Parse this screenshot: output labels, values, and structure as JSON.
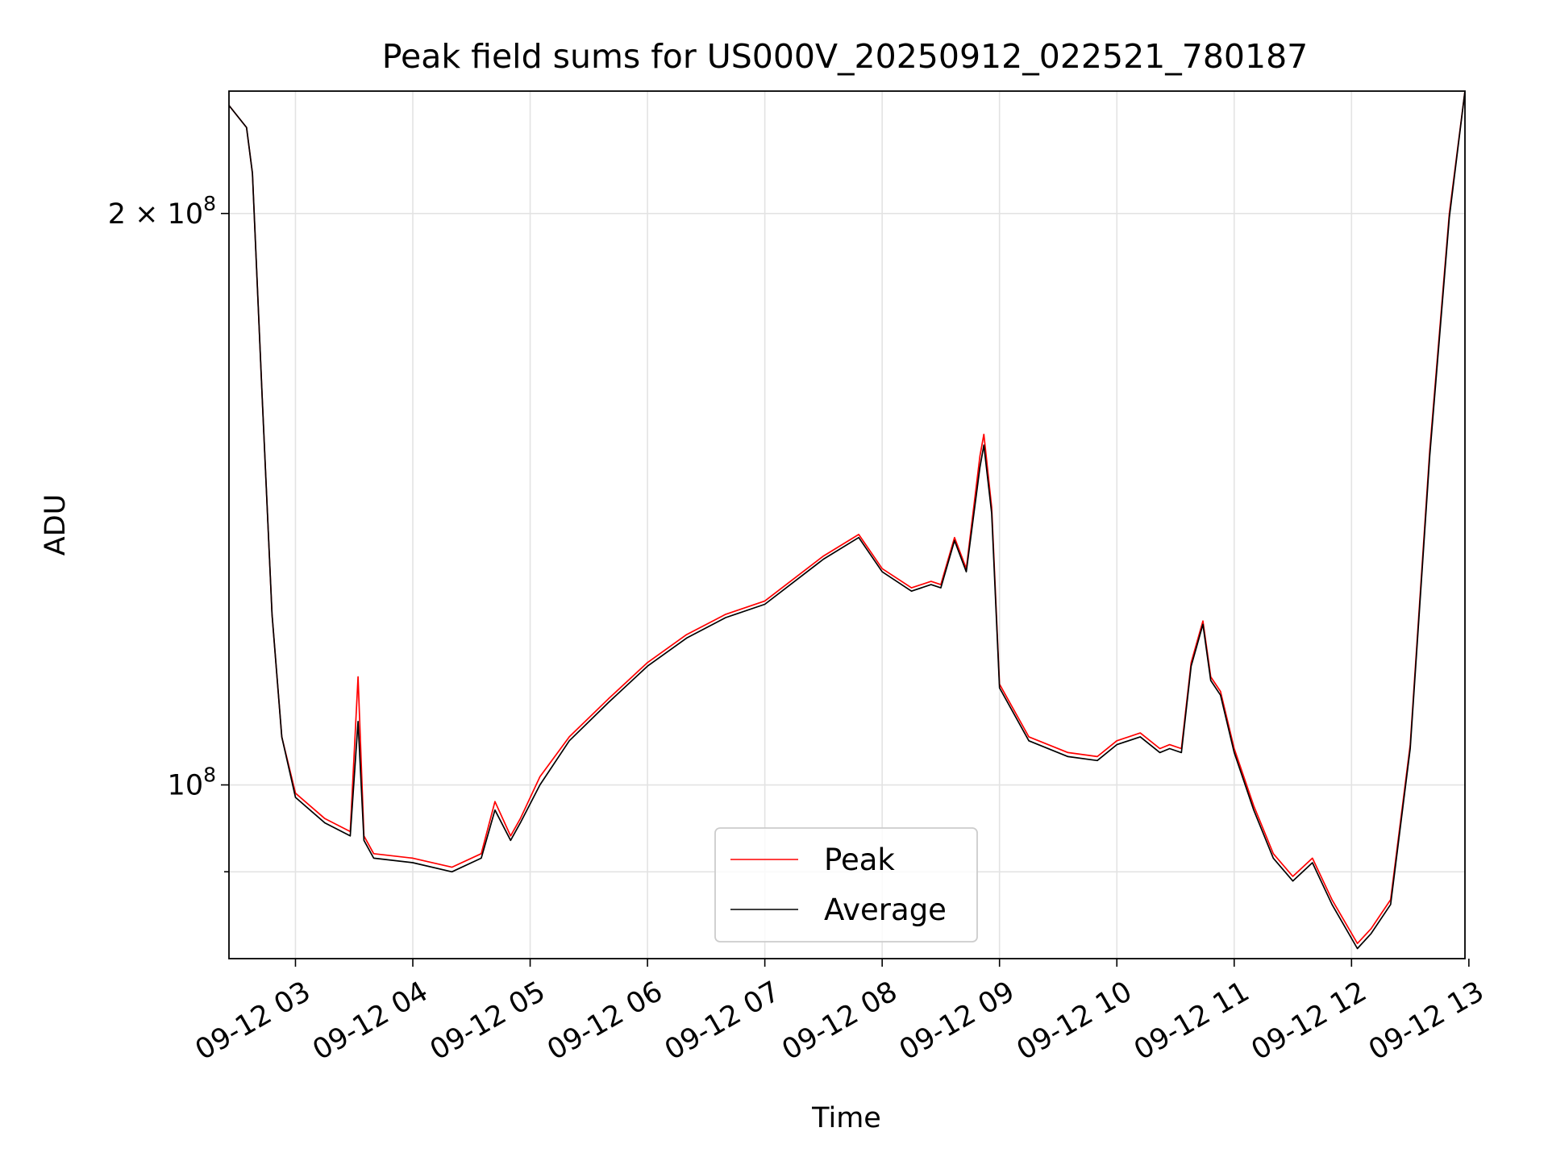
{
  "chart_data": {
    "type": "line",
    "title": "Peak field sums for US000V_20250912_022521_780187",
    "xlabel": "Time",
    "ylabel": "ADU",
    "x_scale": "time",
    "y_scale": "log",
    "xlim": [
      "2025-09-12 02:26",
      "2025-09-12 12:58"
    ],
    "ylim": [
      81000000,
      232000000
    ],
    "x_ticks": [
      "09-12 03",
      "09-12 04",
      "09-12 05",
      "09-12 06",
      "09-12 07",
      "09-12 08",
      "09-12 09",
      "09-12 10",
      "09-12 11",
      "09-12 12",
      "09-12 13"
    ],
    "y_ticks": [
      {
        "value": 200000000,
        "base": "2 × 10",
        "exp": "8"
      },
      {
        "value": 100000000,
        "base": "10",
        "exp": "8"
      }
    ],
    "grid": true,
    "legend_position": "lower center",
    "series": [
      {
        "name": "Peak",
        "color": "#ff0000",
        "x": [
          "2025-09-12 02:26",
          "2025-09-12 02:35",
          "2025-09-12 02:38",
          "2025-09-12 02:43",
          "2025-09-12 02:48",
          "2025-09-12 02:53",
          "2025-09-12 03:00",
          "2025-09-12 03:15",
          "2025-09-12 03:28",
          "2025-09-12 03:32",
          "2025-09-12 03:35",
          "2025-09-12 03:40",
          "2025-09-12 04:00",
          "2025-09-12 04:20",
          "2025-09-12 04:35",
          "2025-09-12 04:42",
          "2025-09-12 04:50",
          "2025-09-12 04:55",
          "2025-09-12 05:05",
          "2025-09-12 05:20",
          "2025-09-12 05:40",
          "2025-09-12 06:00",
          "2025-09-12 06:20",
          "2025-09-12 06:40",
          "2025-09-12 07:00",
          "2025-09-12 07:30",
          "2025-09-12 07:48",
          "2025-09-12 08:00",
          "2025-09-12 08:15",
          "2025-09-12 08:25",
          "2025-09-12 08:30",
          "2025-09-12 08:37",
          "2025-09-12 08:43",
          "2025-09-12 08:50",
          "2025-09-12 08:52",
          "2025-09-12 08:56",
          "2025-09-12 09:00",
          "2025-09-12 09:15",
          "2025-09-12 09:35",
          "2025-09-12 09:50",
          "2025-09-12 10:00",
          "2025-09-12 10:12",
          "2025-09-12 10:22",
          "2025-09-12 10:27",
          "2025-09-12 10:33",
          "2025-09-12 10:38",
          "2025-09-12 10:44",
          "2025-09-12 10:48",
          "2025-09-12 10:53",
          "2025-09-12 11:00",
          "2025-09-12 11:10",
          "2025-09-12 11:20",
          "2025-09-12 11:30",
          "2025-09-12 11:40",
          "2025-09-12 11:50",
          "2025-09-12 12:03",
          "2025-09-12 12:10",
          "2025-09-12 12:20",
          "2025-09-12 12:30",
          "2025-09-12 12:40",
          "2025-09-12 12:50",
          "2025-09-12 12:58"
        ],
        "y": [
          228000000,
          222000000,
          210000000,
          160000000,
          123000000,
          106000000,
          99000000,
          96000000,
          94500000,
          114000000,
          94000000,
          92000000,
          91500000,
          90500000,
          92000000,
          98000000,
          94000000,
          96000000,
          101000000,
          106000000,
          111000000,
          116000000,
          120000000,
          123000000,
          125000000,
          132000000,
          135500000,
          130000000,
          127000000,
          128000000,
          127500000,
          135000000,
          130000000,
          149000000,
          153000000,
          140000000,
          113000000,
          106000000,
          104000000,
          103500000,
          105500000,
          106500000,
          104500000,
          105000000,
          104500000,
          116000000,
          122000000,
          114000000,
          112000000,
          104500000,
          97500000,
          92000000,
          89500000,
          91500000,
          87000000,
          82500000,
          84000000,
          87000000,
          105000000,
          150000000,
          200000000,
          232000000
        ]
      },
      {
        "name": "Average",
        "color": "#000000",
        "x": [
          "2025-09-12 02:26",
          "2025-09-12 02:35",
          "2025-09-12 02:38",
          "2025-09-12 02:43",
          "2025-09-12 02:48",
          "2025-09-12 02:53",
          "2025-09-12 03:00",
          "2025-09-12 03:15",
          "2025-09-12 03:28",
          "2025-09-12 03:32",
          "2025-09-12 03:35",
          "2025-09-12 03:40",
          "2025-09-12 04:00",
          "2025-09-12 04:20",
          "2025-09-12 04:35",
          "2025-09-12 04:42",
          "2025-09-12 04:50",
          "2025-09-12 04:55",
          "2025-09-12 05:05",
          "2025-09-12 05:20",
          "2025-09-12 05:40",
          "2025-09-12 06:00",
          "2025-09-12 06:20",
          "2025-09-12 06:40",
          "2025-09-12 07:00",
          "2025-09-12 07:30",
          "2025-09-12 07:48",
          "2025-09-12 08:00",
          "2025-09-12 08:15",
          "2025-09-12 08:25",
          "2025-09-12 08:30",
          "2025-09-12 08:37",
          "2025-09-12 08:43",
          "2025-09-12 08:50",
          "2025-09-12 08:52",
          "2025-09-12 08:56",
          "2025-09-12 09:00",
          "2025-09-12 09:15",
          "2025-09-12 09:35",
          "2025-09-12 09:50",
          "2025-09-12 10:00",
          "2025-09-12 10:12",
          "2025-09-12 10:22",
          "2025-09-12 10:27",
          "2025-09-12 10:33",
          "2025-09-12 10:38",
          "2025-09-12 10:44",
          "2025-09-12 10:48",
          "2025-09-12 10:53",
          "2025-09-12 11:00",
          "2025-09-12 11:10",
          "2025-09-12 11:20",
          "2025-09-12 11:30",
          "2025-09-12 11:40",
          "2025-09-12 11:50",
          "2025-09-12 12:03",
          "2025-09-12 12:10",
          "2025-09-12 12:20",
          "2025-09-12 12:30",
          "2025-09-12 12:40",
          "2025-09-12 12:50",
          "2025-09-12 12:58"
        ],
        "y": [
          228000000,
          222000000,
          210000000,
          160000000,
          123000000,
          106000000,
          98500000,
          95500000,
          94000000,
          108000000,
          93500000,
          91500000,
          91000000,
          90000000,
          91500000,
          97000000,
          93500000,
          95500000,
          100000000,
          105500000,
          110500000,
          115500000,
          119500000,
          122500000,
          124500000,
          131500000,
          135000000,
          129500000,
          126500000,
          127500000,
          127000000,
          134500000,
          129500000,
          147000000,
          151000000,
          139000000,
          112500000,
          105500000,
          103500000,
          103000000,
          105000000,
          106000000,
          104000000,
          104500000,
          104000000,
          115500000,
          121500000,
          113500000,
          111500000,
          104000000,
          97000000,
          91500000,
          89000000,
          91000000,
          86500000,
          82000000,
          83500000,
          86500000,
          104500000,
          149000000,
          199000000,
          232000000
        ]
      }
    ]
  }
}
